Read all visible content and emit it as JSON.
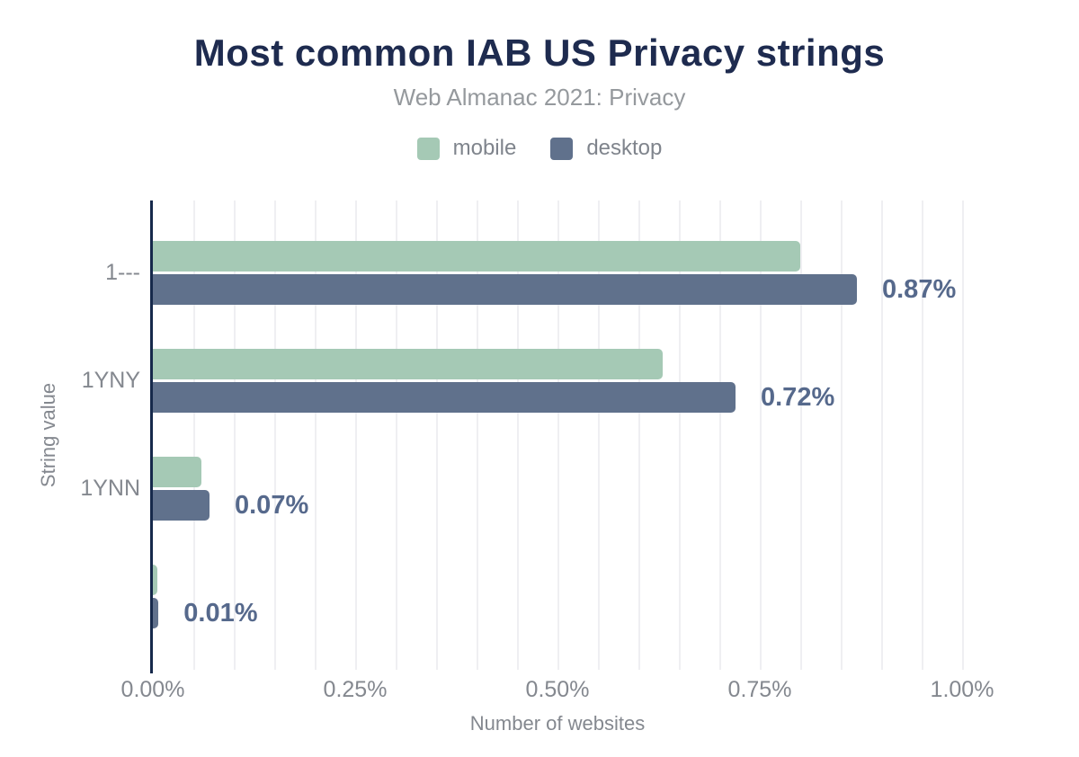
{
  "chart_data": {
    "type": "bar",
    "orientation": "horizontal",
    "title": "Most common IAB US Privacy strings",
    "subtitle": "Web Almanac 2021: Privacy",
    "xlabel": "Number of websites",
    "ylabel": "String value",
    "categories": [
      "1---",
      "1YNY",
      "1YNN",
      ""
    ],
    "series": [
      {
        "name": "mobile",
        "color": "#a5c9b5",
        "values_pct": [
          0.8,
          0.63,
          0.06,
          0.005
        ]
      },
      {
        "name": "desktop",
        "color": "#60718c",
        "values_pct": [
          0.87,
          0.72,
          0.07,
          0.007
        ]
      }
    ],
    "data_labels": {
      "attached_to_series": "desktop",
      "values": [
        "0.87%",
        "0.72%",
        "0.07%",
        "0.01%"
      ]
    },
    "x_ticks": [
      {
        "value": 0,
        "label": "0.00%"
      },
      {
        "value": 0.25,
        "label": "0.25%"
      },
      {
        "value": 0.5,
        "label": "0.50%"
      },
      {
        "value": 0.75,
        "label": "0.75%"
      },
      {
        "value": 1.0,
        "label": "1.00%"
      }
    ],
    "xlim": [
      0,
      1.0
    ],
    "gridline_interval": 0.05,
    "grid": true,
    "legend_position": "top"
  },
  "colors": {
    "title": "#1e2b4f",
    "subtitle": "#95999d",
    "legend_text": "#7f848c",
    "axis_text": "#84888f",
    "data_label": "#56698c",
    "axis_line": "#16294b",
    "gridline": "#efeff2",
    "background": "#ffffff"
  }
}
